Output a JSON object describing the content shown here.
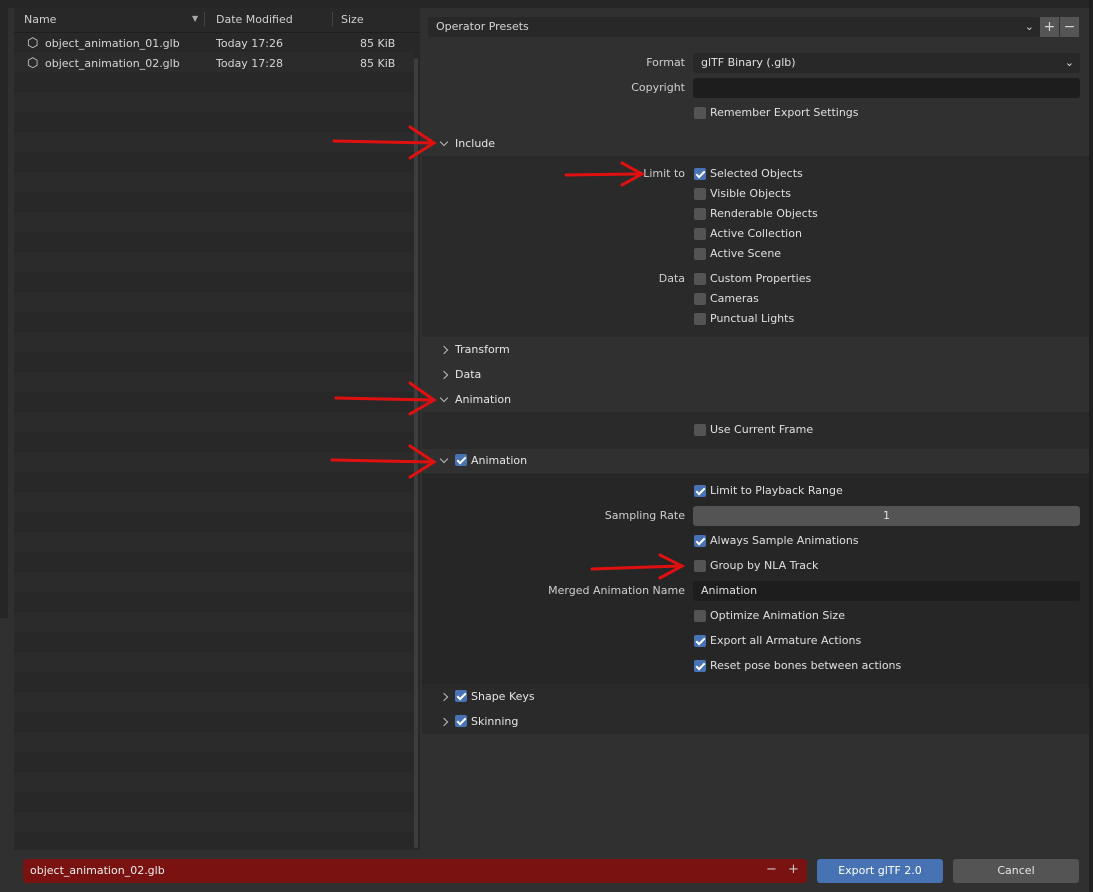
{
  "file_browser": {
    "columns": {
      "name": "Name",
      "date": "Date Modified",
      "size": "Size"
    },
    "files": [
      {
        "name": "object_animation_01.glb",
        "date": "Today 17:26",
        "size": "85 KiB"
      },
      {
        "name": "object_animation_02.glb",
        "date": "Today 17:28",
        "size": "85 KiB"
      }
    ]
  },
  "presets": {
    "label": "Operator Presets",
    "add": "+",
    "remove": "−"
  },
  "general": {
    "format_label": "Format",
    "format_value": "glTF Binary (.glb)",
    "copyright_label": "Copyright",
    "copyright_value": "",
    "remember": {
      "label": "Remember Export Settings",
      "checked": false
    }
  },
  "include": {
    "title": "Include",
    "limit_label": "Limit to",
    "limit": [
      {
        "label": "Selected Objects",
        "checked": true
      },
      {
        "label": "Visible Objects",
        "checked": false
      },
      {
        "label": "Renderable Objects",
        "checked": false
      },
      {
        "label": "Active Collection",
        "checked": false
      },
      {
        "label": "Active Scene",
        "checked": false
      }
    ],
    "data_label": "Data",
    "data": [
      {
        "label": "Custom Properties",
        "checked": false
      },
      {
        "label": "Cameras",
        "checked": false
      },
      {
        "label": "Punctual Lights",
        "checked": false
      }
    ]
  },
  "sections": {
    "transform": "Transform",
    "data": "Data",
    "animation": "Animation"
  },
  "animation": {
    "use_current_frame": {
      "label": "Use Current Frame",
      "checked": false
    },
    "sub_title": "Animation",
    "sub_checked": true,
    "limit_playback": {
      "label": "Limit to Playback Range",
      "checked": true
    },
    "sampling_label": "Sampling Rate",
    "sampling_value": "1",
    "always_sample": {
      "label": "Always Sample Animations",
      "checked": true
    },
    "group_nla": {
      "label": "Group by NLA Track",
      "checked": false
    },
    "merged_label": "Merged Animation Name",
    "merged_value": "Animation",
    "optimize": {
      "label": "Optimize Animation Size",
      "checked": false
    },
    "export_armature": {
      "label": "Export all Armature Actions",
      "checked": true
    },
    "reset_pose": {
      "label": "Reset pose bones between actions",
      "checked": true
    }
  },
  "shape_keys": {
    "label": "Shape Keys",
    "checked": true
  },
  "skinning": {
    "label": "Skinning",
    "checked": true
  },
  "footer": {
    "filename": "object_animation_02.glb",
    "decrement": "−",
    "increment": "+",
    "export": "Export glTF 2.0",
    "cancel": "Cancel"
  },
  "colors": {
    "accent": "#4772b3",
    "filename_error": "#7a1212",
    "annotation_arrow": "#e01010"
  }
}
